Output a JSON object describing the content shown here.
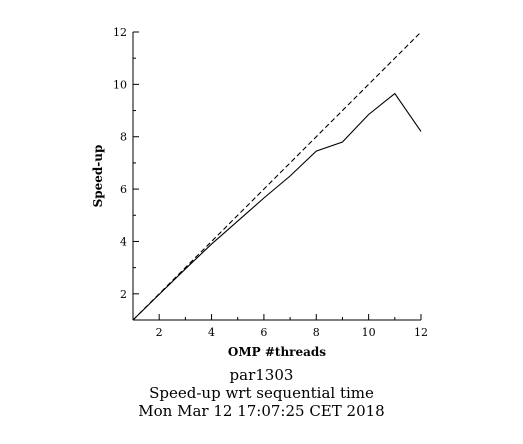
{
  "chart_data": {
    "type": "line",
    "xlabel": "OMP #threads",
    "ylabel": "Speed-up",
    "xlim": [
      1,
      12
    ],
    "ylim": [
      1,
      12
    ],
    "x_ticks": [
      2,
      4,
      6,
      8,
      10,
      12
    ],
    "y_ticks": [
      2,
      4,
      6,
      8,
      10,
      12
    ],
    "grid": false,
    "series": [
      {
        "style": "solid",
        "x": [
          1,
          2,
          3,
          4,
          5,
          6,
          7,
          8,
          9,
          10,
          11,
          12
        ],
        "y": [
          1,
          1.98,
          2.95,
          3.9,
          4.78,
          5.66,
          6.5,
          7.45,
          7.8,
          8.85,
          9.65,
          8.2
        ]
      },
      {
        "style": "dashed",
        "x": [
          1,
          12
        ],
        "y": [
          1,
          12
        ]
      }
    ],
    "captions": [
      "par1303",
      "Speed-up wrt sequential time",
      "Mon Mar 12 17:07:25 CET 2018"
    ]
  }
}
